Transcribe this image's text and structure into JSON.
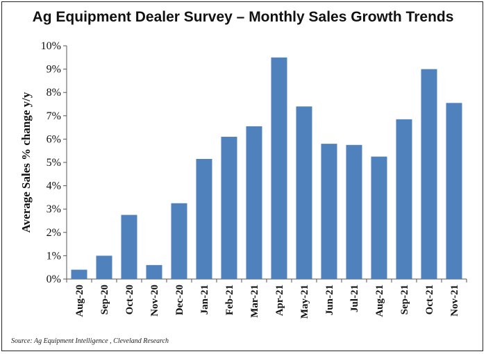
{
  "chart_data": {
    "type": "bar",
    "title": "Ag Equipment Dealer Survey – Monthly Sales Growth Trends",
    "xlabel": "",
    "ylabel": "Average Sales % change y/y",
    "categories": [
      "Aug-20",
      "Sep-20",
      "Oct-20",
      "Nov-20",
      "Dec-20",
      "Jan-21",
      "Feb-21",
      "Mar-21",
      "Apr-21",
      "May-21",
      "Jun-21",
      "Jul-21",
      "Aug-21",
      "Sep-21",
      "Oct-21",
      "Nov-21"
    ],
    "values": [
      0.4,
      1.0,
      2.75,
      0.6,
      3.25,
      5.15,
      6.1,
      6.55,
      9.5,
      7.4,
      5.8,
      5.75,
      5.25,
      6.85,
      9.0,
      7.55
    ],
    "ylim": [
      0,
      10
    ],
    "yticks": [
      "0%",
      "1%",
      "2%",
      "3%",
      "4%",
      "5%",
      "6%",
      "7%",
      "8%",
      "9%",
      "10%"
    ],
    "grid": false,
    "bar_color": "#4f81bd",
    "source": "Source: Ag Equipment Intelligence , Cleveland Research"
  }
}
